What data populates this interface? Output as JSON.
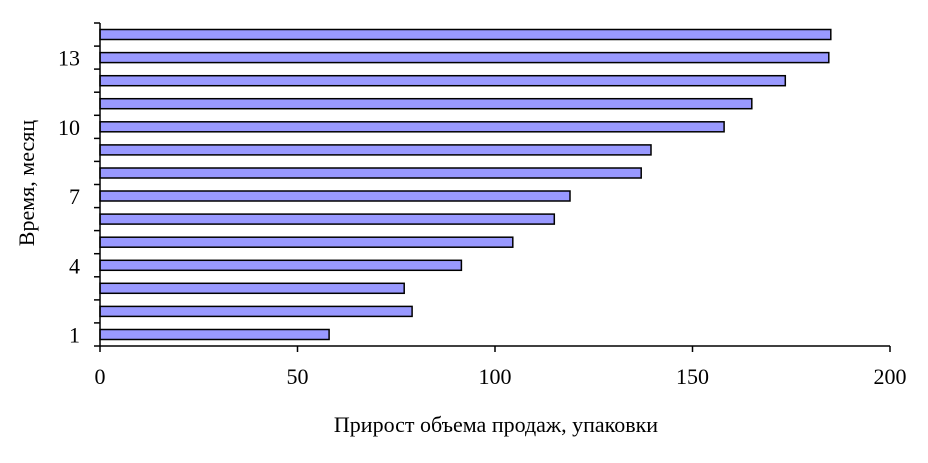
{
  "chart_data": {
    "type": "bar",
    "orientation": "horizontal",
    "title": "",
    "xlabel": "Прирост объема продаж, упаковки",
    "ylabel": "Время, месяц",
    "categories": [
      "1",
      "2",
      "3",
      "4",
      "5",
      "6",
      "7",
      "8",
      "9",
      "10",
      "11",
      "12",
      "13",
      "14"
    ],
    "y_tick_labels": [
      "1",
      "4",
      "7",
      "10",
      "13"
    ],
    "x_tick_labels": [
      "0",
      "50",
      "100",
      "150",
      "200"
    ],
    "values": [
      58,
      79,
      77,
      91.5,
      104.5,
      115,
      119,
      137,
      139.5,
      158,
      165,
      173.5,
      184.5,
      185
    ],
    "xlim": [
      0,
      200
    ],
    "grid": false,
    "legend": "none",
    "colors": {
      "bar_fill": "#9999ff",
      "bar_stroke": "#000000",
      "axis": "#000000",
      "background": "#ffffff"
    }
  }
}
